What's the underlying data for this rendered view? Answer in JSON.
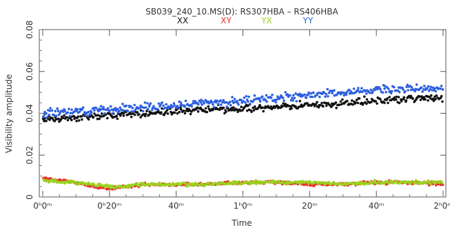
{
  "chart_data": {
    "type": "scatter",
    "title": "SB039_240_10.MS(D): RS307HBA  –  RS406HBA",
    "xlabel": "Time",
    "ylabel": "Visibility amplitude",
    "xlim_minutes": [
      0,
      120
    ],
    "ylim": [
      0,
      0.08
    ],
    "grid": false,
    "legend_placement": "top-center",
    "x_ticks": [
      {
        "minutes": 0,
        "label": "0ʰ0ᵐ"
      },
      {
        "minutes": 20,
        "label": "0ʰ20ᵐ"
      },
      {
        "minutes": 40,
        "label": "40ᵐ"
      },
      {
        "minutes": 60,
        "label": "1ʰ0ᵐ"
      },
      {
        "minutes": 80,
        "label": "20ᵐ"
      },
      {
        "minutes": 100,
        "label": "40ᵐ"
      },
      {
        "minutes": 120,
        "label": "2ʰ0ᵐ"
      }
    ],
    "y_ticks": [
      {
        "value": 0,
        "label": "0"
      },
      {
        "value": 0.02,
        "label": "0.02"
      },
      {
        "value": 0.04,
        "label": "0.04"
      },
      {
        "value": 0.06,
        "label": "0.06"
      },
      {
        "value": 0.08,
        "label": "0.08"
      }
    ],
    "series": [
      {
        "name": "XX",
        "color": "#111111",
        "x_minutes": [
          0,
          10,
          20,
          30,
          40,
          50,
          60,
          70,
          80,
          90,
          100,
          110,
          120
        ],
        "y": [
          0.037,
          0.038,
          0.039,
          0.04,
          0.041,
          0.042,
          0.042,
          0.043,
          0.044,
          0.045,
          0.046,
          0.047,
          0.047
        ],
        "spread": 0.0025
      },
      {
        "name": "XY",
        "color": "#e8312b",
        "x_minutes": [
          0,
          5,
          10,
          15,
          20,
          25,
          30,
          40,
          50,
          60,
          70,
          80,
          90,
          100,
          110,
          120
        ],
        "y": [
          0.009,
          0.008,
          0.007,
          0.005,
          0.004,
          0.005,
          0.006,
          0.006,
          0.006,
          0.007,
          0.007,
          0.006,
          0.006,
          0.007,
          0.007,
          0.006
        ],
        "spread": 0.0012
      },
      {
        "name": "YX",
        "color": "#9ad21f",
        "x_minutes": [
          0,
          5,
          10,
          15,
          20,
          25,
          30,
          40,
          50,
          60,
          70,
          80,
          90,
          100,
          110,
          120
        ],
        "y": [
          0.008,
          0.007,
          0.007,
          0.006,
          0.005,
          0.005,
          0.006,
          0.006,
          0.006,
          0.007,
          0.007,
          0.007,
          0.006,
          0.007,
          0.007,
          0.007
        ],
        "spread": 0.0012
      },
      {
        "name": "YY",
        "color": "#2d5fe0",
        "x_minutes": [
          0,
          10,
          20,
          30,
          40,
          50,
          60,
          70,
          80,
          90,
          100,
          110,
          120
        ],
        "y": [
          0.04,
          0.041,
          0.042,
          0.043,
          0.044,
          0.045,
          0.046,
          0.047,
          0.049,
          0.05,
          0.051,
          0.052,
          0.052
        ],
        "spread": 0.003
      }
    ]
  }
}
